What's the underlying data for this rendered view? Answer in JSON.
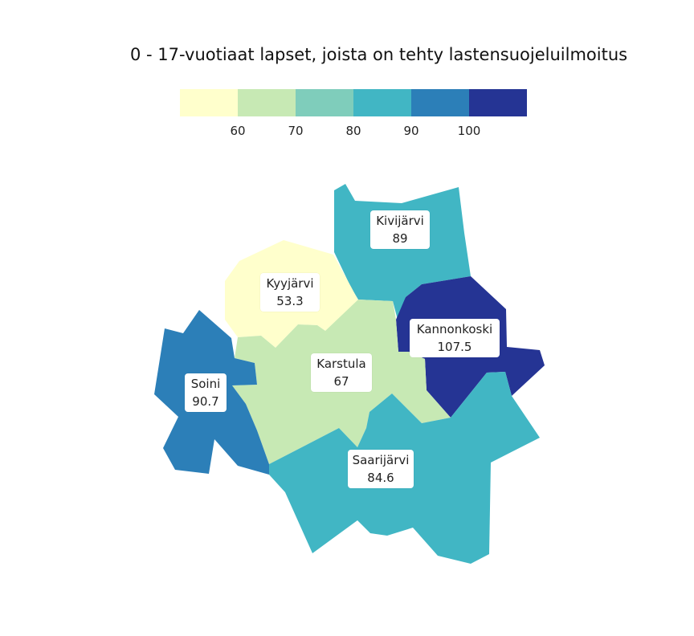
{
  "title": "0 - 17-vuotiaat lapset, joista on tehty lastensuojeluilmoitus",
  "legend": {
    "colors": [
      "#ffffcc",
      "#c7e9b4",
      "#7fcdbb",
      "#41b6c4",
      "#2c7fb8",
      "#253494"
    ],
    "ticks": [
      "60",
      "70",
      "80",
      "90",
      "100"
    ]
  },
  "regions": [
    {
      "name": "Kivijärvi",
      "value": "89",
      "color": "#41b6c4"
    },
    {
      "name": "Kyyjärvi",
      "value": "53.3",
      "color": "#ffffcc"
    },
    {
      "name": "Kannonkoski",
      "value": "107.5",
      "color": "#253494"
    },
    {
      "name": "Karstula",
      "value": "67",
      "color": "#c7e9b4"
    },
    {
      "name": "Soini",
      "value": "90.7",
      "color": "#2c7fb8"
    },
    {
      "name": "Saarijärvi",
      "value": "84.6",
      "color": "#41b6c4"
    }
  ]
}
